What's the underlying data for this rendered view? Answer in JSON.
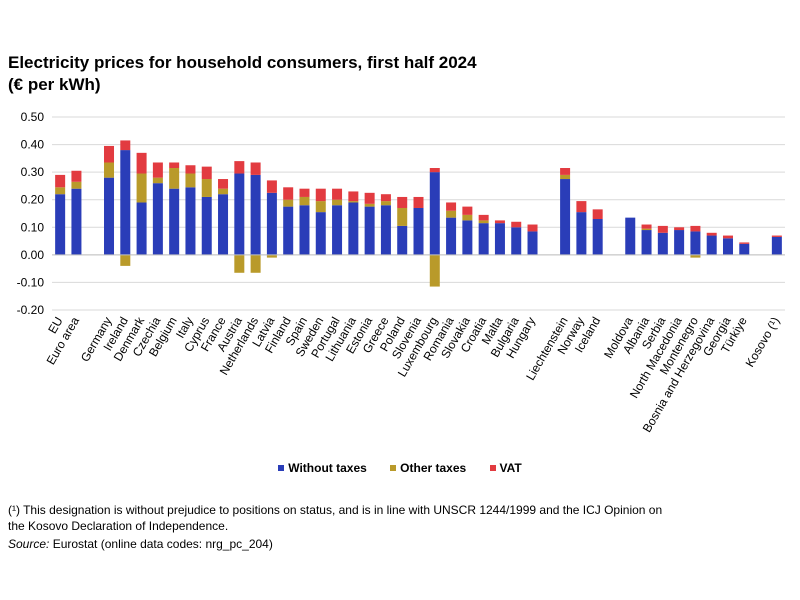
{
  "title_line1": "Electricity prices for household consumers, first half 2024",
  "title_line2": "(€ per kWh)",
  "colors": {
    "without_taxes": "#2A3DB8",
    "other_taxes": "#B99A2A",
    "vat": "#E23B40",
    "grid": "#D9D9D9"
  },
  "legend": [
    {
      "key": "without_taxes",
      "label": "Without taxes"
    },
    {
      "key": "other_taxes",
      "label": "Other taxes"
    },
    {
      "key": "vat",
      "label": "VAT"
    }
  ],
  "footnote": "(¹) This designation is without prejudice to positions on status, and is in line with UNSCR 1244/1999 and the ICJ Opinion on the Kosovo Declaration of Independence.",
  "source_label": "Source:",
  "source_text": "Eurostat (online data codes: nrg_pc_204)",
  "chart_data": {
    "type": "bar",
    "stacked": true,
    "title": "Electricity prices for household consumers, first half 2024",
    "ylabel": "€ per kWh",
    "ylim": [
      -0.2,
      0.5
    ],
    "yticks": [
      "0.50",
      "0.40",
      "0.30",
      "0.20",
      "0.10",
      "0.00",
      "-0.10",
      "-0.20"
    ],
    "ytick_values": [
      0.5,
      0.4,
      0.3,
      0.2,
      0.1,
      0.0,
      -0.1,
      -0.2
    ],
    "grid": true,
    "legend_position": "bottom",
    "categories": [
      "EU",
      "Euro area",
      "",
      "Germany",
      "Ireland",
      "Denmark",
      "Czechia",
      "Belgium",
      "Italy",
      "Cyprus",
      "France",
      "Austria",
      "Netherlands",
      "Latvia",
      "Finland",
      "Spain",
      "Sweden",
      "Portugal",
      "Lithuania",
      "Estonia",
      "Greece",
      "Poland",
      "Slovenia",
      "Luxembourg",
      "Romania",
      "Slovakia",
      "Croatia",
      "Malta",
      "Bulgaria",
      "Hungary",
      "",
      "Liechtenstein",
      "Norway",
      "Iceland",
      "",
      "Moldova",
      "Albania",
      "Serbia",
      "North Macedonia",
      "Montenegro",
      "Bosnia and Herzegovina",
      "Georgia",
      "Türkiye",
      "",
      "Kosovo (¹)"
    ],
    "series": [
      {
        "name": "Without taxes",
        "key": "without_taxes",
        "values": [
          0.22,
          0.24,
          null,
          0.28,
          0.38,
          0.19,
          0.26,
          0.24,
          0.245,
          0.21,
          0.22,
          0.295,
          0.29,
          0.225,
          0.175,
          0.18,
          0.155,
          0.18,
          0.19,
          0.175,
          0.18,
          0.105,
          0.17,
          0.3,
          0.135,
          0.125,
          0.115,
          0.115,
          0.1,
          0.085,
          null,
          0.275,
          0.155,
          0.13,
          null,
          0.135,
          0.09,
          0.08,
          0.09,
          0.085,
          0.07,
          0.06,
          0.04,
          null,
          0.065
        ]
      },
      {
        "name": "Other taxes",
        "key": "other_taxes",
        "values": [
          0.025,
          0.025,
          null,
          0.055,
          -0.04,
          0.105,
          0.02,
          0.075,
          0.05,
          0.065,
          0.02,
          -0.065,
          -0.065,
          -0.01,
          0.025,
          0.03,
          0.04,
          0.02,
          0.005,
          0.01,
          0.015,
          0.065,
          0.0,
          -0.115,
          0.025,
          0.02,
          0.01,
          0.0,
          0.0,
          0.0,
          null,
          0.015,
          0.0,
          0.0,
          null,
          0.0,
          0.005,
          0.0,
          0.0,
          -0.01,
          0.0,
          0.0,
          0.0,
          null,
          0.0
        ]
      },
      {
        "name": "VAT",
        "key": "vat",
        "values": [
          0.045,
          0.04,
          null,
          0.06,
          0.035,
          0.075,
          0.055,
          0.02,
          0.03,
          0.045,
          0.035,
          0.045,
          0.045,
          0.045,
          0.045,
          0.03,
          0.045,
          0.04,
          0.035,
          0.04,
          0.025,
          0.04,
          0.04,
          0.015,
          0.03,
          0.03,
          0.02,
          0.01,
          0.02,
          0.025,
          null,
          0.025,
          0.04,
          0.035,
          null,
          0.0,
          0.015,
          0.025,
          0.01,
          0.02,
          0.01,
          0.01,
          0.005,
          null,
          0.005
        ]
      }
    ]
  }
}
